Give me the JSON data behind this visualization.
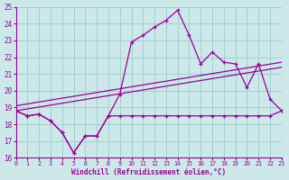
{
  "x": [
    0,
    1,
    2,
    3,
    4,
    5,
    6,
    7,
    8,
    9,
    10,
    11,
    12,
    13,
    14,
    15,
    16,
    17,
    18,
    19,
    20,
    21,
    22,
    23
  ],
  "line_zigzag": [
    18.8,
    18.5,
    18.6,
    18.2,
    17.5,
    16.3,
    17.3,
    17.3,
    18.5,
    19.8,
    22.9,
    23.3,
    23.8,
    24.2,
    24.8,
    23.3,
    21.6,
    22.3,
    21.7,
    21.6,
    20.2,
    21.6,
    19.5,
    18.8
  ],
  "line_flat": [
    18.8,
    18.5,
    18.6,
    18.2,
    17.5,
    16.3,
    17.3,
    17.3,
    18.5,
    18.5,
    18.5,
    18.5,
    18.5,
    18.5,
    18.5,
    18.5,
    18.5,
    18.5,
    18.5,
    18.5,
    18.5,
    18.5,
    18.5,
    18.8
  ],
  "trend1_y0": 18.8,
  "trend1_y1": 21.4,
  "trend2_y0": 19.1,
  "trend2_y1": 21.7,
  "bg_color": "#cce8e8",
  "line_color": "#990099",
  "grid_color": "#99cccc",
  "xlabel": "Windchill (Refroidissement éolien,°C)",
  "ylim": [
    16,
    25
  ],
  "xlim": [
    0,
    23
  ],
  "yticks": [
    16,
    17,
    18,
    19,
    20,
    21,
    22,
    23,
    24,
    25
  ],
  "xticks": [
    0,
    1,
    2,
    3,
    4,
    5,
    6,
    7,
    8,
    9,
    10,
    11,
    12,
    13,
    14,
    15,
    16,
    17,
    18,
    19,
    20,
    21,
    22,
    23
  ]
}
